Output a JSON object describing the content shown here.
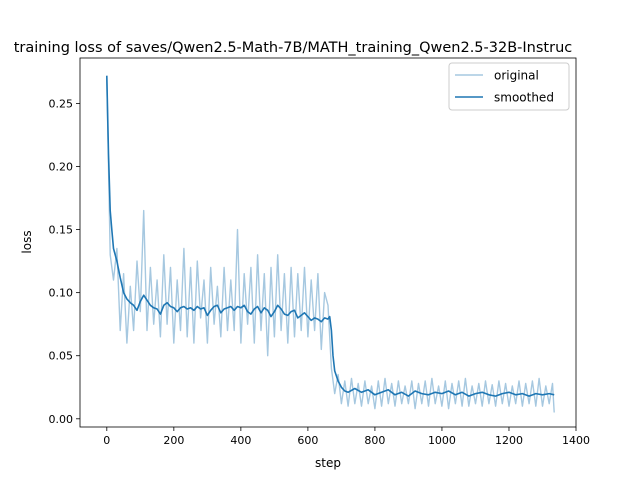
{
  "chart_data": {
    "type": "line",
    "title": "training loss of saves/Qwen2.5-Math-7B/MATH_training_Qwen2.5-32B-Instruc",
    "xlabel": "step",
    "ylabel": "loss",
    "xlim": [
      -80,
      1400
    ],
    "ylim": [
      -0.0065,
      0.286
    ],
    "x_ticks": [
      0,
      200,
      400,
      600,
      800,
      1000,
      1200,
      1400
    ],
    "x_tick_labels": [
      "0",
      "200",
      "400",
      "600",
      "800",
      "1000",
      "1200",
      "1400"
    ],
    "y_ticks": [
      0.0,
      0.05,
      0.1,
      0.15,
      0.2,
      0.25
    ],
    "y_tick_labels": [
      "0.00",
      "0.05",
      "0.10",
      "0.15",
      "0.20",
      "0.25"
    ],
    "grid": false,
    "legend_placement": "top-right",
    "series": [
      {
        "name": "original",
        "color": "#a6c8e0",
        "x": [
          0,
          10,
          20,
          30,
          40,
          50,
          60,
          70,
          80,
          90,
          100,
          110,
          120,
          130,
          140,
          150,
          160,
          170,
          180,
          190,
          200,
          210,
          220,
          230,
          240,
          250,
          260,
          270,
          280,
          290,
          300,
          310,
          320,
          330,
          340,
          350,
          360,
          370,
          380,
          390,
          400,
          410,
          420,
          430,
          440,
          450,
          460,
          470,
          480,
          490,
          500,
          510,
          520,
          530,
          540,
          550,
          560,
          570,
          580,
          590,
          600,
          610,
          620,
          630,
          640,
          650,
          660,
          670,
          680,
          690,
          700,
          710,
          720,
          730,
          740,
          750,
          760,
          770,
          780,
          790,
          800,
          810,
          820,
          830,
          840,
          850,
          860,
          870,
          880,
          890,
          900,
          910,
          920,
          930,
          940,
          950,
          960,
          970,
          980,
          990,
          1000,
          1010,
          1020,
          1030,
          1040,
          1050,
          1060,
          1070,
          1080,
          1090,
          1100,
          1110,
          1120,
          1130,
          1140,
          1150,
          1160,
          1170,
          1180,
          1190,
          1200,
          1210,
          1220,
          1230,
          1240,
          1250,
          1260,
          1270,
          1280,
          1290,
          1300,
          1310,
          1320,
          1330,
          1335
        ],
        "values": [
          0.27,
          0.13,
          0.11,
          0.135,
          0.07,
          0.115,
          0.06,
          0.105,
          0.07,
          0.125,
          0.085,
          0.165,
          0.07,
          0.12,
          0.075,
          0.11,
          0.065,
          0.13,
          0.075,
          0.12,
          0.06,
          0.11,
          0.07,
          0.135,
          0.065,
          0.12,
          0.06,
          0.125,
          0.08,
          0.11,
          0.06,
          0.12,
          0.075,
          0.105,
          0.065,
          0.12,
          0.07,
          0.11,
          0.07,
          0.15,
          0.06,
          0.115,
          0.075,
          0.12,
          0.06,
          0.13,
          0.07,
          0.115,
          0.05,
          0.12,
          0.065,
          0.13,
          0.07,
          0.115,
          0.06,
          0.12,
          0.065,
          0.115,
          0.07,
          0.12,
          0.065,
          0.11,
          0.07,
          0.115,
          0.055,
          0.1,
          0.09,
          0.04,
          0.02,
          0.035,
          0.012,
          0.03,
          0.01,
          0.032,
          0.012,
          0.028,
          0.01,
          0.03,
          0.012,
          0.026,
          0.008,
          0.03,
          0.01,
          0.032,
          0.012,
          0.028,
          0.01,
          0.03,
          0.012,
          0.026,
          0.012,
          0.03,
          0.008,
          0.028,
          0.012,
          0.03,
          0.01,
          0.032,
          0.012,
          0.026,
          0.01,
          0.03,
          0.008,
          0.028,
          0.012,
          0.03,
          0.01,
          0.032,
          0.01,
          0.026,
          0.012,
          0.028,
          0.01,
          0.03,
          0.012,
          0.027,
          0.01,
          0.03,
          0.012,
          0.028,
          0.01,
          0.026,
          0.012,
          0.03,
          0.01,
          0.028,
          0.012,
          0.03,
          0.01,
          0.032,
          0.01,
          0.026,
          0.012,
          0.028,
          0.005
        ]
      },
      {
        "name": "smoothed",
        "color": "#1f77b4",
        "x": [
          0,
          5,
          10,
          15,
          20,
          30,
          40,
          50,
          60,
          70,
          80,
          90,
          100,
          110,
          120,
          130,
          140,
          150,
          160,
          170,
          180,
          190,
          200,
          210,
          220,
          230,
          240,
          250,
          260,
          270,
          280,
          290,
          300,
          310,
          320,
          330,
          340,
          350,
          360,
          370,
          380,
          390,
          400,
          410,
          420,
          430,
          440,
          450,
          460,
          470,
          480,
          490,
          500,
          510,
          520,
          530,
          540,
          550,
          560,
          570,
          580,
          590,
          600,
          610,
          620,
          630,
          640,
          650,
          660,
          665,
          670,
          675,
          680,
          690,
          700,
          710,
          720,
          740,
          760,
          780,
          800,
          820,
          840,
          860,
          880,
          900,
          920,
          940,
          960,
          980,
          1000,
          1020,
          1040,
          1060,
          1080,
          1100,
          1120,
          1140,
          1160,
          1180,
          1200,
          1220,
          1240,
          1260,
          1280,
          1300,
          1320,
          1335
        ],
        "values": [
          0.272,
          0.21,
          0.165,
          0.15,
          0.135,
          0.125,
          0.112,
          0.1,
          0.095,
          0.092,
          0.09,
          0.086,
          0.093,
          0.098,
          0.094,
          0.09,
          0.088,
          0.087,
          0.083,
          0.09,
          0.092,
          0.089,
          0.088,
          0.085,
          0.088,
          0.089,
          0.087,
          0.088,
          0.086,
          0.089,
          0.087,
          0.088,
          0.082,
          0.086,
          0.089,
          0.09,
          0.084,
          0.087,
          0.088,
          0.089,
          0.086,
          0.089,
          0.088,
          0.09,
          0.085,
          0.083,
          0.087,
          0.089,
          0.084,
          0.088,
          0.086,
          0.081,
          0.085,
          0.09,
          0.087,
          0.083,
          0.082,
          0.085,
          0.086,
          0.08,
          0.082,
          0.084,
          0.081,
          0.078,
          0.08,
          0.079,
          0.077,
          0.08,
          0.079,
          0.081,
          0.07,
          0.05,
          0.038,
          0.03,
          0.025,
          0.022,
          0.021,
          0.024,
          0.021,
          0.023,
          0.019,
          0.021,
          0.023,
          0.019,
          0.021,
          0.018,
          0.022,
          0.02,
          0.019,
          0.021,
          0.02,
          0.022,
          0.019,
          0.021,
          0.018,
          0.02,
          0.021,
          0.019,
          0.018,
          0.02,
          0.021,
          0.019,
          0.02,
          0.018,
          0.02,
          0.019,
          0.02,
          0.019
        ]
      }
    ]
  }
}
